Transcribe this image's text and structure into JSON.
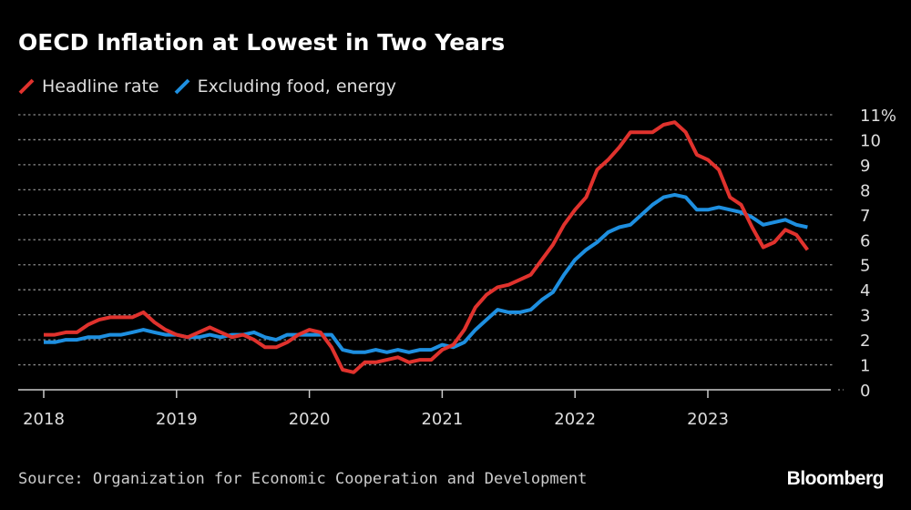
{
  "chart_data": {
    "type": "line",
    "title": "OECD Inflation at Lowest in Two Years",
    "x_start": "2018-01",
    "x_frequency": "monthly",
    "x_ticks": [
      "2018",
      "2019",
      "2020",
      "2021",
      "2022",
      "2023"
    ],
    "y_ticks": [
      "0",
      "1",
      "2",
      "3",
      "4",
      "5",
      "6",
      "7",
      "8",
      "9",
      "10",
      "11%"
    ],
    "ylim": [
      0,
      11
    ],
    "grid": true,
    "legend": "top-left",
    "series": [
      {
        "name": "Headline rate",
        "color": "#e0322d",
        "values": [
          2.2,
          2.2,
          2.3,
          2.3,
          2.6,
          2.8,
          2.9,
          2.9,
          2.9,
          3.1,
          2.7,
          2.4,
          2.2,
          2.1,
          2.3,
          2.5,
          2.3,
          2.1,
          2.2,
          2.0,
          1.7,
          1.7,
          1.9,
          2.2,
          2.4,
          2.3,
          1.7,
          0.8,
          0.7,
          1.1,
          1.1,
          1.2,
          1.3,
          1.1,
          1.2,
          1.2,
          1.6,
          1.8,
          2.4,
          3.3,
          3.8,
          4.1,
          4.2,
          4.4,
          4.6,
          5.2,
          5.8,
          6.6,
          7.2,
          7.7,
          8.8,
          9.2,
          9.7,
          10.3,
          10.3,
          10.3,
          10.6,
          10.7,
          10.3,
          9.4,
          9.2,
          8.8,
          7.7,
          7.4,
          6.5,
          5.7,
          5.9,
          6.4,
          6.2,
          5.6
        ]
      },
      {
        "name": "Excluding food, energy",
        "color": "#1e8fe0",
        "values": [
          1.9,
          1.9,
          2.0,
          2.0,
          2.1,
          2.1,
          2.2,
          2.2,
          2.3,
          2.4,
          2.3,
          2.2,
          2.2,
          2.1,
          2.1,
          2.2,
          2.1,
          2.2,
          2.2,
          2.3,
          2.1,
          2.0,
          2.2,
          2.2,
          2.2,
          2.2,
          2.2,
          1.6,
          1.5,
          1.5,
          1.6,
          1.5,
          1.6,
          1.5,
          1.6,
          1.6,
          1.8,
          1.7,
          1.9,
          2.4,
          2.8,
          3.2,
          3.1,
          3.1,
          3.2,
          3.6,
          3.9,
          4.6,
          5.2,
          5.6,
          5.9,
          6.3,
          6.5,
          6.6,
          7.0,
          7.4,
          7.7,
          7.8,
          7.7,
          7.2,
          7.2,
          7.3,
          7.2,
          7.1,
          6.9,
          6.6,
          6.7,
          6.8,
          6.6,
          6.5
        ]
      }
    ]
  },
  "footer": {
    "source": "Source: Organization for Economic Cooperation and Development",
    "logo": "Bloomberg"
  }
}
